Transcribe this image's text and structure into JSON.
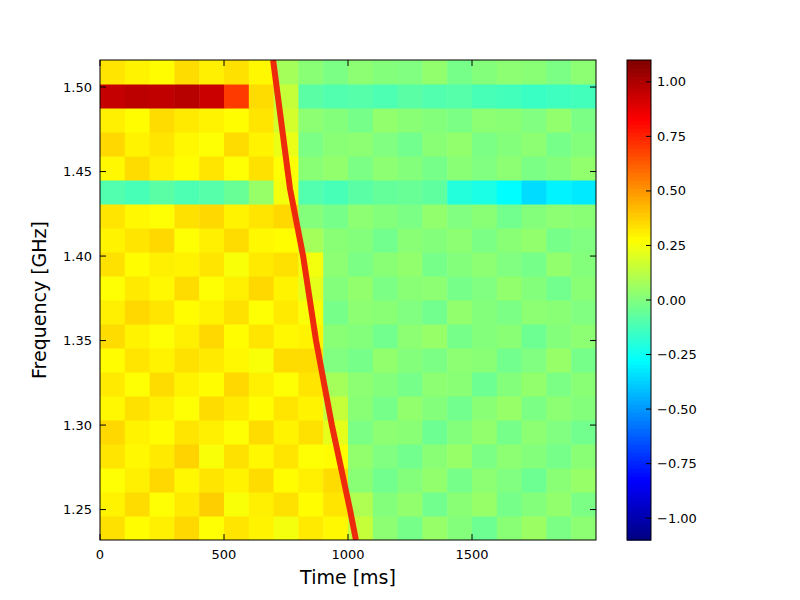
{
  "chart_data": {
    "type": "heatmap",
    "xlabel": "Time [ms]",
    "ylabel": "Frequency [GHz]",
    "xlim": [
      0,
      2000
    ],
    "ylim": [
      1.232,
      1.516
    ],
    "xticks": [
      0,
      500,
      1000,
      1500
    ],
    "yticks": [
      {
        "value": 1.25,
        "label": "1.25"
      },
      {
        "value": 1.3,
        "label": "1.30"
      },
      {
        "value": 1.35,
        "label": "1.35"
      },
      {
        "value": 1.4,
        "label": "1.40"
      },
      {
        "value": 1.45,
        "label": "1.45"
      },
      {
        "value": 1.5,
        "label": "1.50"
      }
    ],
    "colorbar": {
      "range": [
        -1.1,
        1.1
      ],
      "ticks": [
        {
          "value": -1,
          "label": "−1.00"
        },
        {
          "value": -0.75,
          "label": "−0.75"
        },
        {
          "value": -0.5,
          "label": "−0.50"
        },
        {
          "value": -0.25,
          "label": "−0.25"
        },
        {
          "value": 0,
          "label": "0.00"
        },
        {
          "value": 0.25,
          "label": "0.25"
        },
        {
          "value": 0.5,
          "label": "0.50"
        },
        {
          "value": 0.75,
          "label": "0.75"
        },
        {
          "value": 1,
          "label": "1.00"
        }
      ]
    },
    "cells": {
      "x_edges": [
        0,
        100,
        200,
        300,
        400,
        500,
        600,
        700,
        800,
        900,
        1000,
        1100,
        1200,
        1300,
        1400,
        1500,
        1600,
        1700,
        1800,
        1900,
        2000
      ],
      "y_edges": [
        1.232,
        1.2462,
        1.2604,
        1.2746,
        1.2888,
        1.303,
        1.3172,
        1.3314,
        1.3456,
        1.3598,
        1.374,
        1.3882,
        1.4024,
        1.4166,
        1.4308,
        1.445,
        1.4592,
        1.4734,
        1.4876,
        1.5018,
        1.516
      ],
      "values": [
        [
          0.34,
          0.28,
          0.31,
          0.36,
          0.27,
          0.33,
          0.3,
          0.25,
          0.32,
          0.29,
          0.15,
          0.03,
          -0.02,
          0.05,
          0.01,
          -0.04,
          0.02,
          0.06,
          -0.01,
          0.03
        ],
        [
          0.3,
          0.35,
          0.27,
          0.32,
          0.38,
          0.26,
          0.31,
          0.34,
          0.28,
          0.33,
          0.1,
          0.01,
          0.04,
          -0.03,
          0.02,
          0.05,
          -0.02,
          0.01,
          0.04,
          -0.01
        ],
        [
          0.27,
          0.31,
          0.36,
          0.29,
          0.33,
          0.3,
          0.35,
          0.28,
          0.31,
          0.35,
          0.02,
          -0.03,
          0.01,
          0.04,
          -0.02,
          0.03,
          0.0,
          -0.04,
          0.02,
          0.05
        ],
        [
          0.33,
          0.29,
          0.32,
          0.37,
          0.26,
          0.34,
          0.29,
          0.33,
          0.27,
          0.28,
          0.04,
          0.0,
          -0.03,
          0.02,
          0.05,
          -0.01,
          0.03,
          0.01,
          -0.02,
          0.02
        ],
        [
          0.36,
          0.3,
          0.28,
          0.33,
          0.31,
          0.27,
          0.35,
          0.3,
          0.34,
          0.22,
          -0.01,
          0.03,
          0.02,
          -0.04,
          0.01,
          0.04,
          -0.02,
          0.03,
          0.0,
          -0.03
        ],
        [
          0.29,
          0.34,
          0.31,
          0.27,
          0.35,
          0.32,
          0.28,
          0.33,
          0.3,
          0.15,
          0.02,
          -0.02,
          0.04,
          0.01,
          -0.03,
          0.02,
          0.05,
          -0.01,
          0.03,
          0.01
        ],
        [
          0.32,
          0.27,
          0.35,
          0.3,
          0.28,
          0.36,
          0.31,
          0.27,
          0.33,
          0.08,
          0.03,
          0.01,
          -0.02,
          0.03,
          0.02,
          -0.04,
          0.01,
          0.04,
          -0.01,
          0.02
        ],
        [
          0.28,
          0.33,
          0.3,
          0.34,
          0.32,
          0.29,
          0.26,
          0.35,
          0.35,
          0.0,
          -0.02,
          0.04,
          0.01,
          -0.01,
          0.03,
          0.02,
          -0.03,
          0.0,
          0.05,
          -0.02
        ],
        [
          0.35,
          0.3,
          0.27,
          0.31,
          0.36,
          0.28,
          0.33,
          0.29,
          0.3,
          0.02,
          0.01,
          -0.03,
          0.03,
          0.05,
          -0.02,
          0.01,
          0.02,
          -0.04,
          0.01,
          0.03
        ],
        [
          0.31,
          0.36,
          0.33,
          0.28,
          0.3,
          0.34,
          0.27,
          0.32,
          0.26,
          -0.02,
          0.03,
          0.02,
          0.0,
          -0.03,
          0.04,
          0.01,
          -0.01,
          0.03,
          0.02,
          0.0
        ],
        [
          0.27,
          0.32,
          0.29,
          0.35,
          0.27,
          0.31,
          0.36,
          0.3,
          0.22,
          0.01,
          0.04,
          -0.01,
          0.02,
          0.03,
          -0.02,
          0.0,
          0.04,
          0.01,
          -0.03,
          0.02
        ],
        [
          0.34,
          0.28,
          0.31,
          0.3,
          0.33,
          0.26,
          0.32,
          0.34,
          0.25,
          0.03,
          -0.01,
          0.02,
          0.04,
          -0.02,
          0.01,
          0.03,
          0.0,
          -0.02,
          0.04,
          0.01
        ],
        [
          0.3,
          0.33,
          0.36,
          0.27,
          0.31,
          0.35,
          0.29,
          0.28,
          0.08,
          0.02,
          0.01,
          -0.03,
          0.02,
          0.01,
          0.03,
          -0.01,
          0.02,
          0.04,
          -0.02,
          0.0
        ],
        [
          0.33,
          0.29,
          0.27,
          0.34,
          0.36,
          0.3,
          0.33,
          0.36,
          0.01,
          -0.02,
          0.03,
          0.01,
          -0.01,
          0.04,
          0.0,
          0.02,
          -0.03,
          0.01,
          0.03,
          0.02
        ],
        [
          -0.1,
          -0.12,
          -0.08,
          -0.11,
          -0.09,
          -0.05,
          0.05,
          0.25,
          -0.1,
          -0.12,
          -0.08,
          -0.06,
          -0.05,
          -0.07,
          -0.2,
          -0.22,
          -0.28,
          -0.35,
          -0.3,
          -0.32
        ],
        [
          0.29,
          0.35,
          0.31,
          0.28,
          0.33,
          0.27,
          0.34,
          0.27,
          0.02,
          0.04,
          -0.01,
          0.03,
          0.01,
          -0.02,
          0.02,
          0.0,
          0.03,
          -0.01,
          0.01,
          0.04
        ],
        [
          0.36,
          0.3,
          0.33,
          0.29,
          0.27,
          0.35,
          0.3,
          0.23,
          -0.01,
          0.02,
          0.03,
          0.0,
          -0.03,
          0.02,
          0.04,
          -0.01,
          0.01,
          0.03,
          -0.02,
          0.01
        ],
        [
          0.31,
          0.28,
          0.35,
          0.32,
          0.3,
          0.28,
          0.33,
          0.18,
          0.03,
          0.01,
          -0.02,
          0.04,
          0.02,
          0.01,
          -0.01,
          0.03,
          0.02,
          0.0,
          0.04,
          -0.01
        ],
        [
          0.95,
          0.97,
          0.96,
          0.98,
          0.94,
          0.7,
          0.35,
          0.15,
          -0.08,
          -0.1,
          -0.09,
          -0.11,
          -0.08,
          -0.1,
          -0.09,
          -0.12,
          -0.13,
          -0.15,
          -0.14,
          -0.13
        ],
        [
          0.33,
          0.3,
          0.28,
          0.35,
          0.31,
          0.34,
          0.29,
          0.08,
          0.02,
          -0.01,
          0.03,
          0.01,
          0.0,
          0.04,
          -0.02,
          0.01,
          0.03,
          0.02,
          -0.01,
          0.03
        ]
      ]
    },
    "series": [
      {
        "type": "line",
        "color": "#ee2a0c",
        "x": [
          698,
          766,
          819,
          871,
          935,
          1008,
          1032
        ],
        "values": [
          1.516,
          1.44,
          1.4,
          1.35,
          1.3,
          1.25,
          1.232
        ]
      }
    ]
  }
}
